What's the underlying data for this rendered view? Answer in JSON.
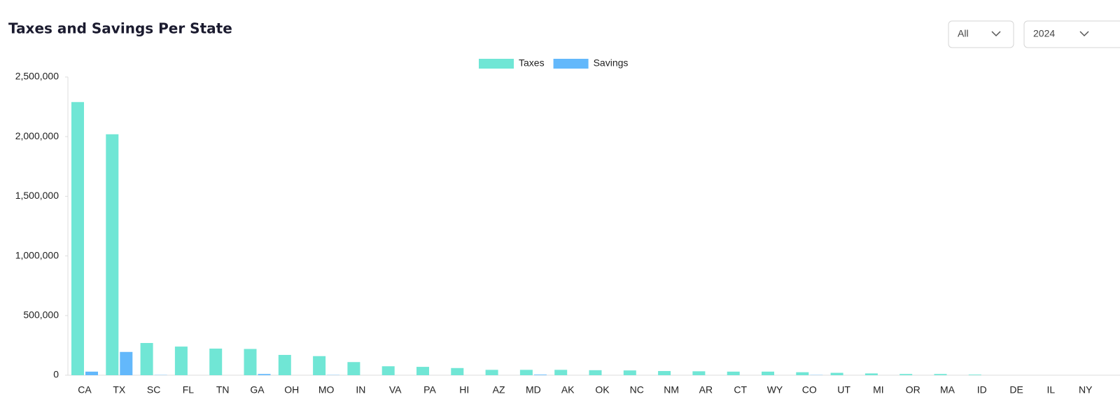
{
  "controls": {
    "region": "All",
    "year": "2024"
  },
  "chart_data": {
    "type": "bar",
    "title": "Taxes and Savings Per State",
    "categories": [
      "CA",
      "TX",
      "SC",
      "FL",
      "TN",
      "GA",
      "OH",
      "MO",
      "IN",
      "VA",
      "PA",
      "HI",
      "AZ",
      "MD",
      "AK",
      "OK",
      "NC",
      "NM",
      "AR",
      "CT",
      "WY",
      "CO",
      "UT",
      "MI",
      "OR",
      "MA",
      "ID",
      "DE",
      "IL",
      "NY"
    ],
    "series": [
      {
        "name": "Taxes",
        "color": "#70e6d5",
        "values": [
          2290000,
          2020000,
          270000,
          240000,
          223000,
          220000,
          170000,
          160000,
          110000,
          75000,
          70000,
          60000,
          45000,
          45000,
          45000,
          42000,
          40000,
          35000,
          33000,
          30000,
          30000,
          25000,
          20000,
          15000,
          10000,
          10000,
          5000,
          0,
          0,
          0
        ]
      },
      {
        "name": "Savings",
        "color": "#63b8fb",
        "values": [
          30000,
          195000,
          2000,
          0,
          0,
          10000,
          0,
          2000,
          0,
          0,
          0,
          0,
          0,
          5000,
          0,
          0,
          0,
          0,
          0,
          0,
          0,
          2000,
          0,
          0,
          0,
          0,
          0,
          0,
          0,
          0
        ]
      }
    ],
    "ylim": [
      0,
      2500000
    ],
    "yticks": [
      0,
      {
        "value": 500000,
        "label": "500,000"
      },
      {
        "value": 1000000,
        "label": "1,000,000"
      },
      {
        "value": 1500000,
        "label": "1,500,000"
      },
      {
        "value": 2000000,
        "label": "2,000,000"
      },
      {
        "value": 2500000,
        "label": "2,500,000"
      }
    ],
    "grid": false,
    "legend": "top"
  }
}
